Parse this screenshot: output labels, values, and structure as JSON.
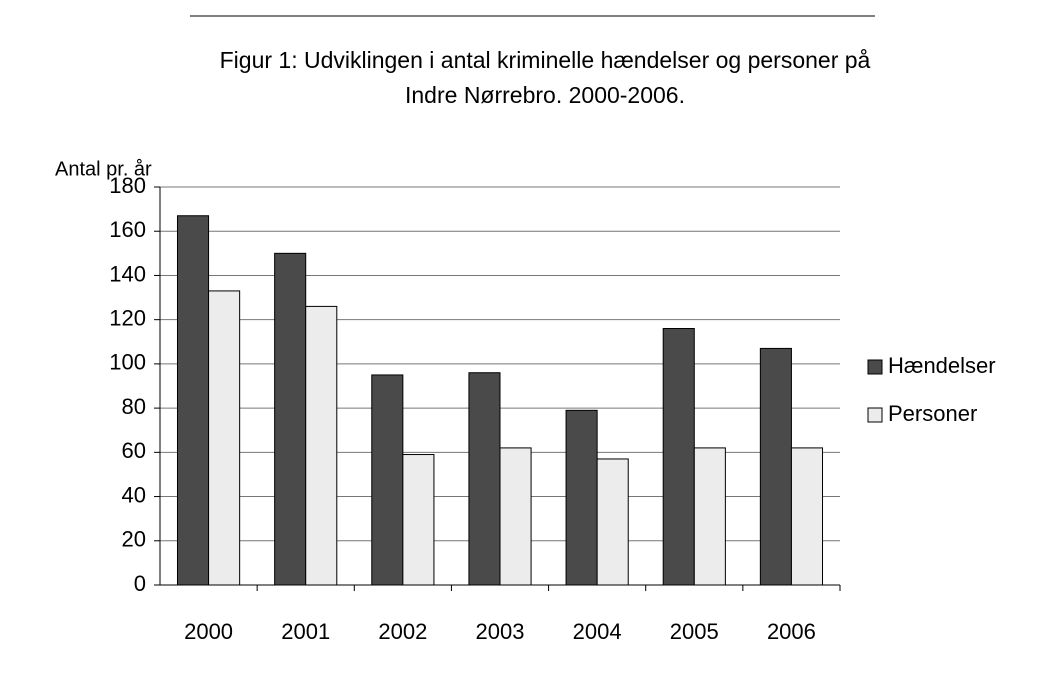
{
  "chart_data": {
    "type": "bar",
    "title": [
      "Figur 1: Udviklingen i antal kriminelle hændelser og personer på",
      "Indre Nørrebro. 2000-2006."
    ],
    "y_label": "Antal pr. år",
    "categories": [
      "2000",
      "2001",
      "2002",
      "2003",
      "2004",
      "2005",
      "2006"
    ],
    "series": [
      {
        "name": "Hændelser",
        "color": "#4a4a4a",
        "values": [
          167,
          150,
          95,
          96,
          79,
          116,
          107
        ]
      },
      {
        "name": "Personer",
        "color": "#ececec",
        "values": [
          133,
          126,
          59,
          62,
          57,
          62,
          62
        ]
      }
    ],
    "ylim": [
      0,
      180
    ],
    "yticks": [
      0,
      20,
      40,
      60,
      80,
      100,
      120,
      140,
      160,
      180
    ],
    "grid": true,
    "legend": "right"
  }
}
